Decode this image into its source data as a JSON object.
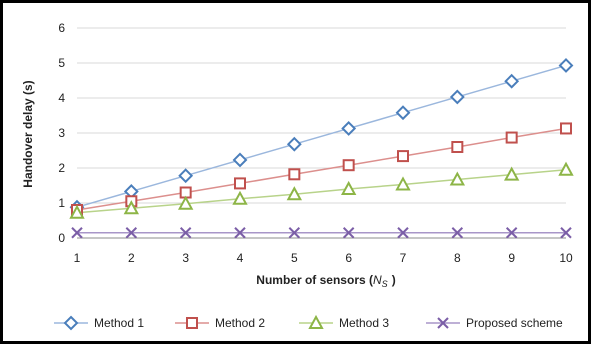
{
  "chart_data": {
    "type": "line",
    "title": "",
    "xlabel": "Number of sensors (",
    "xlabel_symbol": "N",
    "xlabel_subscript": "S",
    "xlabel_suffix": ")",
    "ylabel": "Handover delay (s)",
    "x": [
      1,
      2,
      3,
      4,
      5,
      6,
      7,
      8,
      9,
      10
    ],
    "xlim": [
      1,
      10
    ],
    "ylim": [
      0,
      6
    ],
    "yticks": [
      0,
      1,
      2,
      3,
      4,
      5,
      6
    ],
    "grid": "horizontal",
    "legend_position": "bottom",
    "series": [
      {
        "name": "Method 1",
        "color": "#4a7ebb",
        "line_color": "#9bb7dd",
        "marker": "diamond",
        "values": [
          0.88,
          1.33,
          1.78,
          2.23,
          2.68,
          3.13,
          3.58,
          4.03,
          4.48,
          4.93
        ]
      },
      {
        "name": "Method 2",
        "color": "#c0504d",
        "line_color": "#dc8f8d",
        "marker": "square",
        "values": [
          0.8,
          1.05,
          1.3,
          1.56,
          1.82,
          2.08,
          2.34,
          2.6,
          2.87,
          3.13
        ]
      },
      {
        "name": "Method 3",
        "color": "#8db547",
        "line_color": "#b8d38a",
        "marker": "triangle",
        "values": [
          0.72,
          0.85,
          0.98,
          1.12,
          1.25,
          1.4,
          1.53,
          1.67,
          1.81,
          1.95
        ]
      },
      {
        "name": "Proposed scheme",
        "color": "#7b5ea7",
        "line_color": "#a896c8",
        "marker": "x",
        "values": [
          0.15,
          0.15,
          0.15,
          0.15,
          0.15,
          0.15,
          0.15,
          0.15,
          0.15,
          0.15
        ]
      }
    ]
  }
}
